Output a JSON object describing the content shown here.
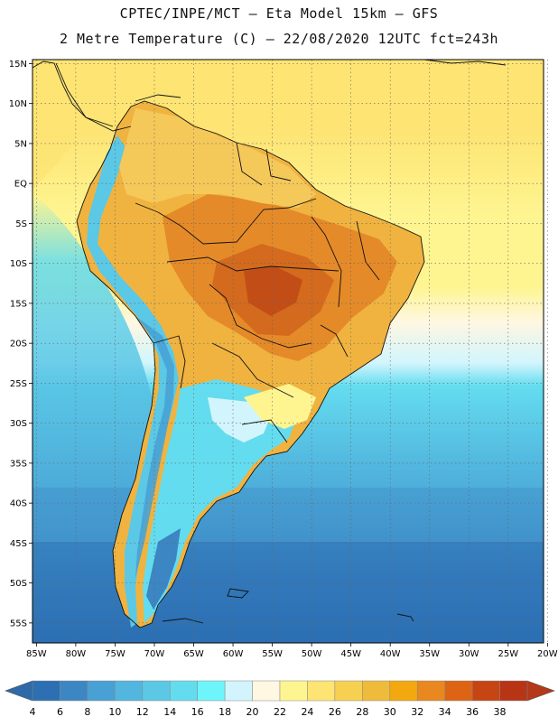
{
  "header": {
    "line1": "CPTEC/INPE/MCT –  Eta Model 15km – GFS",
    "line2": "2 Metre Temperature (C) – 22/08/2020 12UTC fct=243h"
  },
  "map": {
    "region": "South America",
    "lat_labels": [
      "15N",
      "10N",
      "5N",
      "EQ",
      "5S",
      "10S",
      "15S",
      "20S",
      "25S",
      "30S",
      "35S",
      "40S",
      "45S",
      "50S",
      "55S"
    ],
    "lon_labels": [
      "85W",
      "80W",
      "75W",
      "70W",
      "65W",
      "60W",
      "55W",
      "50W",
      "45W",
      "40W",
      "35W",
      "30W",
      "25W",
      "20W"
    ],
    "lat_range": [
      15.5,
      -57.5
    ],
    "lon_range": [
      -85.5,
      -20.5
    ]
  },
  "legend": {
    "values": [
      "4",
      "6",
      "8",
      "10",
      "12",
      "14",
      "16",
      "18",
      "20",
      "22",
      "24",
      "26",
      "28",
      "30",
      "32",
      "34",
      "36",
      "38"
    ],
    "colors": [
      "#2c6fb3",
      "#3c86c4",
      "#48a0d4",
      "#52b6de",
      "#5bc8e6",
      "#64dcef",
      "#6ef5fb",
      "#d2f5fd",
      "#fff7e2",
      "#fef591",
      "#fde473",
      "#f7d052",
      "#efbb3b",
      "#f2a80e",
      "#e8881f",
      "#dc6414",
      "#c64512",
      "#b73415"
    ],
    "low_arrow_color": "#2f6aa8",
    "high_arrow_color": "#b3391a"
  }
}
